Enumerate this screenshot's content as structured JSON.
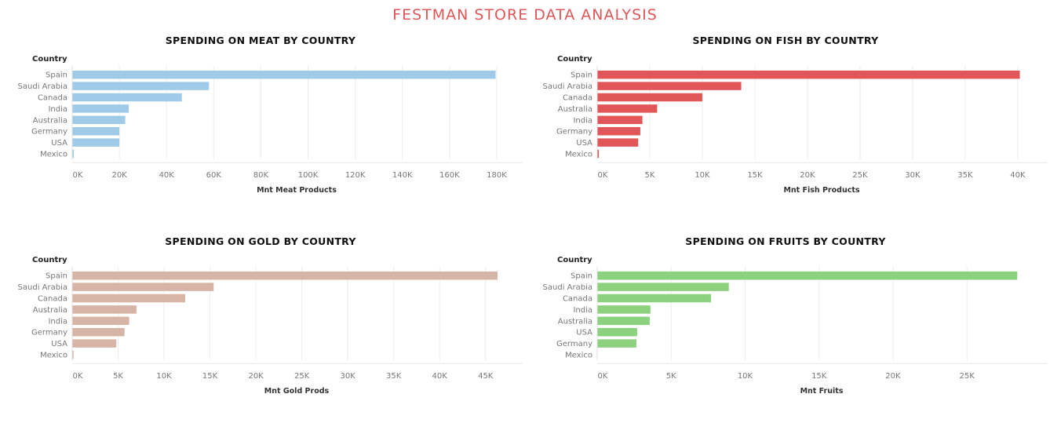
{
  "dashboard": {
    "title": "FESTMAN STORE DATA ANALYSIS",
    "title_color": "#e15759"
  },
  "chart_data": [
    {
      "id": "meat",
      "type": "bar",
      "orientation": "horizontal",
      "title": "SPENDING ON MEAT BY COUNTRY",
      "ylabel": "Country",
      "xlabel": "Mnt Meat Products",
      "color": "#a0cbe8",
      "categories": [
        "Spain",
        "Saudi Arabia",
        "Canada",
        "India",
        "Australia",
        "Germany",
        "USA",
        "Mexico"
      ],
      "values": [
        179500,
        58000,
        46500,
        24000,
        22500,
        20000,
        20000,
        700
      ],
      "xlim": [
        0,
        185000
      ],
      "ticks": [
        0,
        20000,
        40000,
        60000,
        80000,
        100000,
        120000,
        140000,
        160000,
        180000
      ],
      "tick_labels": [
        "0K",
        "20K",
        "40K",
        "60K",
        "80K",
        "100K",
        "120K",
        "140K",
        "160K",
        "180K"
      ],
      "grid": true
    },
    {
      "id": "fish",
      "type": "bar",
      "orientation": "horizontal",
      "title": "SPENDING ON FISH BY COUNTRY",
      "ylabel": "Country",
      "xlabel": "Mnt Fish Products",
      "color": "#e15759",
      "categories": [
        "Spain",
        "Saudi Arabia",
        "Canada",
        "Australia",
        "India",
        "Germany",
        "USA",
        "Mexico"
      ],
      "values": [
        40200,
        13700,
        10000,
        5700,
        4300,
        4100,
        3900,
        150
      ],
      "xlim": [
        0,
        41500
      ],
      "ticks": [
        0,
        5000,
        10000,
        15000,
        20000,
        25000,
        30000,
        35000,
        40000
      ],
      "tick_labels": [
        "0K",
        "5K",
        "10K",
        "15K",
        "20K",
        "25K",
        "30K",
        "35K",
        "40K"
      ],
      "grid": true
    },
    {
      "id": "gold",
      "type": "bar",
      "orientation": "horizontal",
      "title": "SPENDING ON GOLD BY COUNTRY",
      "ylabel": "Country",
      "xlabel": "Mnt Gold Prods",
      "color": "#d7b5a6",
      "categories": [
        "Spain",
        "Saudi Arabia",
        "Canada",
        "Australia",
        "India",
        "Germany",
        "USA",
        "Mexico"
      ],
      "values": [
        46300,
        15400,
        12300,
        7000,
        6200,
        5700,
        4800,
        150
      ],
      "xlim": [
        0,
        47500
      ],
      "ticks": [
        0,
        5000,
        10000,
        15000,
        20000,
        25000,
        30000,
        35000,
        40000,
        45000
      ],
      "tick_labels": [
        "0K",
        "5K",
        "10K",
        "15K",
        "20K",
        "25K",
        "30K",
        "35K",
        "40K",
        "45K"
      ],
      "grid": true
    },
    {
      "id": "fruits",
      "type": "bar",
      "orientation": "horizontal",
      "title": "SPENDING ON FRUITS BY COUNTRY",
      "ylabel": "Country",
      "xlabel": "Mnt Fruits",
      "color": "#8cd17d",
      "categories": [
        "Spain",
        "Saudi Arabia",
        "Canada",
        "India",
        "Australia",
        "USA",
        "Germany",
        "Mexico"
      ],
      "values": [
        28400,
        8900,
        7700,
        3600,
        3550,
        2700,
        2650,
        0
      ],
      "xlim": [
        0,
        29500
      ],
      "ticks": [
        0,
        5000,
        10000,
        15000,
        20000,
        25000
      ],
      "tick_labels": [
        "0K",
        "5K",
        "10K",
        "15K",
        "20K",
        "25K"
      ],
      "grid": true
    }
  ]
}
